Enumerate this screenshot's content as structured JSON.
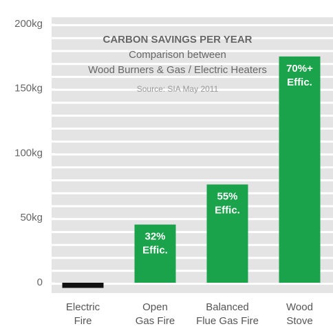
{
  "chart_data": {
    "type": "bar",
    "title": "CARBON SAVINGS PER YEAR",
    "subtitle": [
      "Comparison between",
      "Wood Burners & Gas / Electric Heaters"
    ],
    "source": "Source: SIA May 2011",
    "categories": [
      [
        "Electric",
        "Fire"
      ],
      [
        "Open",
        "Gas Fire"
      ],
      [
        "Balanced",
        "Flue Gas Fire"
      ],
      [
        "Wood",
        "Stove"
      ]
    ],
    "values": [
      -4,
      45,
      76,
      175
    ],
    "colors": [
      "#111111",
      "#1aa34a",
      "#1aa34a",
      "#1aa34a"
    ],
    "bar_labels": [
      null,
      [
        "32%",
        "Effic."
      ],
      [
        "55%",
        "Effic."
      ],
      [
        "70%+",
        "Effic."
      ]
    ],
    "ylim": [
      0,
      200
    ],
    "yticks": [
      0,
      {
        "value": 50,
        "label": "50kg"
      },
      {
        "value": 100,
        "label": "100kg"
      },
      {
        "value": 150,
        "label": "150kg"
      },
      {
        "value": 200,
        "label": "200kg"
      }
    ]
  }
}
